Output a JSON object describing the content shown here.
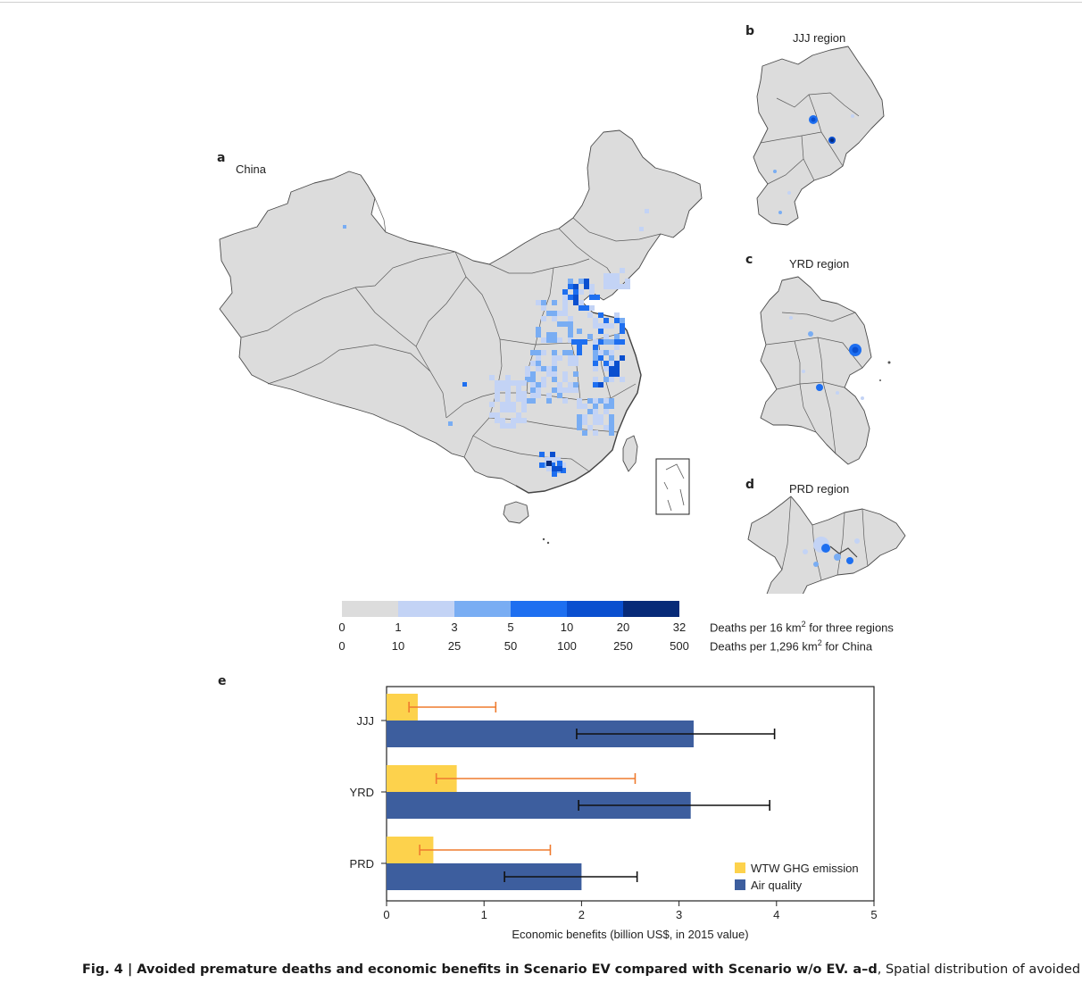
{
  "panels": {
    "a": {
      "letter": "a",
      "title": "China"
    },
    "b": {
      "letter": "b",
      "title": "JJJ region"
    },
    "c": {
      "letter": "c",
      "title": "YRD region"
    },
    "d": {
      "letter": "d",
      "title": "PRD region"
    },
    "e": {
      "letter": "e"
    }
  },
  "colorbar": {
    "colors": [
      "#dcdcdc",
      "#c3d3f5",
      "#79adf3",
      "#1e6ff0",
      "#0a4fcf",
      "#072a78"
    ],
    "ticks_regions": [
      "0",
      "1",
      "3",
      "5",
      "10",
      "20",
      "32"
    ],
    "ticks_china": [
      "0",
      "10",
      "25",
      "50",
      "100",
      "250",
      "500"
    ],
    "label_regions_pre": "Deaths per 16 km",
    "label_regions_sup": "2",
    "label_regions_post": " for three regions",
    "label_china_pre": "Deaths per 1,296 km",
    "label_china_sup": "2",
    "label_china_post": " for China"
  },
  "map_colors": {
    "land": "#dcdcdc",
    "border": "#4a4a4a"
  },
  "chart_data": {
    "type": "bar",
    "orientation": "horizontal",
    "categories": [
      "JJJ",
      "YRD",
      "PRD"
    ],
    "series": [
      {
        "name": "WTW GHG emission",
        "color": "#fdd24c",
        "error_color": "#ef7b2e",
        "values": [
          0.32,
          0.72,
          0.48
        ],
        "error_low": [
          0.23,
          0.51,
          0.34
        ],
        "error_high": [
          1.12,
          2.55,
          1.68
        ]
      },
      {
        "name": "Air quality",
        "color": "#3d5e9e",
        "error_color": "#111111",
        "values": [
          3.15,
          3.12,
          2.0
        ],
        "error_low": [
          1.95,
          1.97,
          1.21
        ],
        "error_high": [
          3.98,
          3.93,
          2.57
        ]
      }
    ],
    "xlabel": "Economic benefits (billion US$, in 2015 value)",
    "xlim": [
      0,
      5
    ],
    "xticks": [
      "0",
      "1",
      "2",
      "3",
      "4",
      "5"
    ],
    "legend_position": "bottom-right",
    "grid": false
  },
  "caption": {
    "figure_label": "Fig. 4 |",
    "bold_title": " Avoided premature deaths and economic benefits in Scenario EV compared with Scenario w/o EV. a–d",
    "rest": ", Spatial distribution of avoided premature"
  }
}
